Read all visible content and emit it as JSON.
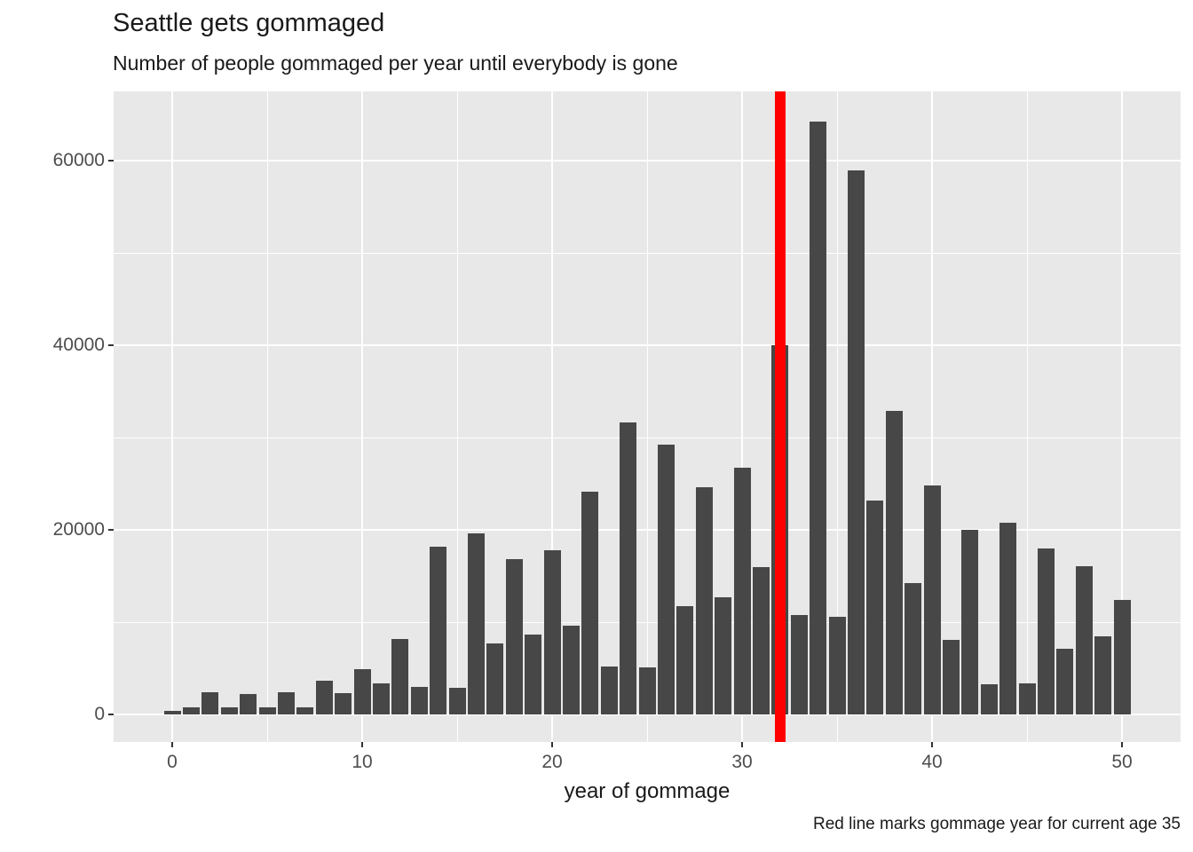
{
  "header": {
    "title": "Seattle gets gommaged",
    "subtitle": "Number of people gommaged per year until everybody is gone"
  },
  "caption": "Red line marks gommage year for current age 35",
  "chart_data": {
    "type": "bar",
    "title": "Seattle gets gommaged",
    "subtitle": "Number of people gommaged per year until everybody is gone",
    "xlabel": "year of gommage",
    "ylabel": "",
    "caption": "Red line marks gommage year for current age 35",
    "x": [
      0,
      1,
      2,
      3,
      4,
      5,
      6,
      7,
      8,
      9,
      10,
      11,
      12,
      13,
      14,
      15,
      16,
      17,
      18,
      19,
      20,
      21,
      22,
      23,
      24,
      25,
      26,
      27,
      28,
      29,
      30,
      31,
      32,
      33,
      34,
      35,
      36,
      37,
      38,
      39,
      40,
      41,
      42,
      43,
      44,
      45,
      46,
      47,
      48,
      49,
      50
    ],
    "values": [
      350,
      800,
      2400,
      750,
      2250,
      750,
      2400,
      750,
      3700,
      2300,
      4900,
      3400,
      8200,
      3000,
      18200,
      2900,
      19600,
      7700,
      16800,
      8700,
      17800,
      9600,
      24100,
      5200,
      31600,
      5100,
      29200,
      11700,
      24600,
      12700,
      26700,
      16000,
      40000,
      10800,
      64200,
      10600,
      58900,
      23200,
      32900,
      14200,
      24800,
      8100,
      20000,
      3300,
      20800,
      3400,
      18000,
      7100,
      16100,
      8500,
      12400
    ],
    "x_ticks": [
      0,
      10,
      20,
      30,
      40,
      50
    ],
    "x_minor_ticks": [
      5,
      15,
      25,
      35,
      45
    ],
    "y_ticks": [
      0,
      20000,
      40000,
      60000
    ],
    "y_tick_labels": [
      "0",
      "20000",
      "40000",
      "60000"
    ],
    "y_minor_ticks": [
      10000,
      30000,
      50000
    ],
    "xlim": [
      -3.1,
      53.1
    ],
    "ylim": [
      -2900,
      68200
    ],
    "grid": true,
    "legend": "none",
    "vline": {
      "x": 32,
      "color": "#FF0000"
    },
    "colors": {
      "bar": "#474747",
      "panel_bg": "#E8E8E8",
      "grid": "#FFFFFF",
      "vline": "#FF0000",
      "tick_text": "#4D4D4D",
      "text": "#1A1A1A",
      "tick_mark": "#333333",
      "page_bg": "#FFFFFF"
    }
  }
}
